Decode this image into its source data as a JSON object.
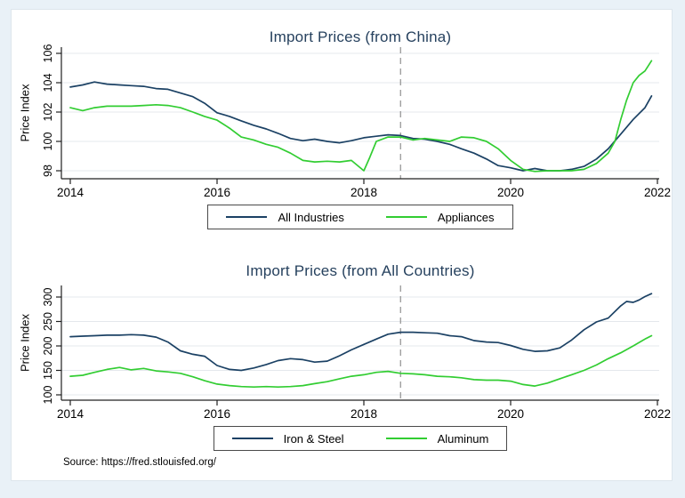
{
  "source_note": "Source: https://fred.stlouisfed.org/",
  "colors": {
    "background": "#e9f1f7",
    "panel": "#ffffff",
    "title": "#26415e",
    "gridline": "#e4e8ec",
    "axis": "#202020",
    "reference_line": "#909090",
    "navy_series": "#1b4164",
    "green_series": "#32cd32"
  },
  "chart_data": [
    {
      "type": "line",
      "title": "Import Prices (from China)",
      "ylabel": "Price Index",
      "xlabel": "",
      "ylim": [
        98,
        106
      ],
      "xlim": [
        2013.9,
        2022
      ],
      "grid": true,
      "legend_position": "bottom",
      "y_ticks": [
        98,
        100,
        102,
        104,
        106
      ],
      "x_ticks": [
        2014,
        2016,
        2018,
        2020,
        2022
      ],
      "vline_x": 2018.5,
      "series": [
        {
          "name": "All Industries",
          "color": "#1b4164",
          "points": [
            [
              2014.0,
              103.7
            ],
            [
              2014.17,
              103.85
            ],
            [
              2014.33,
              104.05
            ],
            [
              2014.5,
              103.9
            ],
            [
              2014.67,
              103.85
            ],
            [
              2014.83,
              103.8
            ],
            [
              2015.0,
              103.75
            ],
            [
              2015.17,
              103.6
            ],
            [
              2015.33,
              103.55
            ],
            [
              2015.5,
              103.3
            ],
            [
              2015.67,
              103.05
            ],
            [
              2015.83,
              102.6
            ],
            [
              2016.0,
              101.95
            ],
            [
              2016.17,
              101.7
            ],
            [
              2016.33,
              101.4
            ],
            [
              2016.5,
              101.1
            ],
            [
              2016.67,
              100.85
            ],
            [
              2016.83,
              100.55
            ],
            [
              2017.0,
              100.2
            ],
            [
              2017.17,
              100.05
            ],
            [
              2017.33,
              100.15
            ],
            [
              2017.5,
              100.0
            ],
            [
              2017.67,
              99.9
            ],
            [
              2017.83,
              100.05
            ],
            [
              2018.0,
              100.25
            ],
            [
              2018.17,
              100.35
            ],
            [
              2018.33,
              100.45
            ],
            [
              2018.5,
              100.4
            ],
            [
              2018.67,
              100.2
            ],
            [
              2018.83,
              100.15
            ],
            [
              2019.0,
              100.0
            ],
            [
              2019.17,
              99.8
            ],
            [
              2019.33,
              99.5
            ],
            [
              2019.5,
              99.2
            ],
            [
              2019.67,
              98.8
            ],
            [
              2019.83,
              98.35
            ],
            [
              2020.0,
              98.2
            ],
            [
              2020.17,
              98.0
            ],
            [
              2020.33,
              98.15
            ],
            [
              2020.5,
              98.0
            ],
            [
              2020.67,
              98.0
            ],
            [
              2020.83,
              98.1
            ],
            [
              2021.0,
              98.3
            ],
            [
              2021.17,
              98.8
            ],
            [
              2021.33,
              99.5
            ],
            [
              2021.5,
              100.5
            ],
            [
              2021.67,
              101.5
            ],
            [
              2021.83,
              102.3
            ],
            [
              2021.92,
              103.1
            ]
          ]
        },
        {
          "name": "Appliances",
          "color": "#32cd32",
          "points": [
            [
              2014.0,
              102.3
            ],
            [
              2014.17,
              102.1
            ],
            [
              2014.33,
              102.3
            ],
            [
              2014.5,
              102.4
            ],
            [
              2014.67,
              102.4
            ],
            [
              2014.83,
              102.4
            ],
            [
              2015.0,
              102.45
            ],
            [
              2015.17,
              102.5
            ],
            [
              2015.33,
              102.45
            ],
            [
              2015.5,
              102.3
            ],
            [
              2015.67,
              102.0
            ],
            [
              2015.83,
              101.7
            ],
            [
              2016.0,
              101.45
            ],
            [
              2016.17,
              100.9
            ],
            [
              2016.33,
              100.3
            ],
            [
              2016.5,
              100.1
            ],
            [
              2016.67,
              99.8
            ],
            [
              2016.83,
              99.6
            ],
            [
              2017.0,
              99.2
            ],
            [
              2017.17,
              98.7
            ],
            [
              2017.33,
              98.6
            ],
            [
              2017.5,
              98.65
            ],
            [
              2017.67,
              98.6
            ],
            [
              2017.83,
              98.7
            ],
            [
              2018.0,
              98.0
            ],
            [
              2018.08,
              98.9
            ],
            [
              2018.17,
              100.0
            ],
            [
              2018.33,
              100.3
            ],
            [
              2018.5,
              100.3
            ],
            [
              2018.67,
              100.1
            ],
            [
              2018.83,
              100.2
            ],
            [
              2019.0,
              100.1
            ],
            [
              2019.17,
              100.0
            ],
            [
              2019.33,
              100.3
            ],
            [
              2019.5,
              100.25
            ],
            [
              2019.67,
              100.0
            ],
            [
              2019.83,
              99.5
            ],
            [
              2020.0,
              98.7
            ],
            [
              2020.17,
              98.1
            ],
            [
              2020.33,
              97.95
            ],
            [
              2020.5,
              98.0
            ],
            [
              2020.67,
              98.0
            ],
            [
              2020.83,
              98.0
            ],
            [
              2021.0,
              98.1
            ],
            [
              2021.17,
              98.5
            ],
            [
              2021.33,
              99.2
            ],
            [
              2021.42,
              100.0
            ],
            [
              2021.5,
              101.5
            ],
            [
              2021.58,
              102.8
            ],
            [
              2021.67,
              104.0
            ],
            [
              2021.75,
              104.5
            ],
            [
              2021.83,
              104.8
            ],
            [
              2021.92,
              105.5
            ]
          ]
        }
      ]
    },
    {
      "type": "line",
      "title": "Import Prices (from All Countries)",
      "ylabel": "Price Index",
      "xlabel": "",
      "ylim": [
        100,
        300
      ],
      "xlim": [
        2013.9,
        2022
      ],
      "grid": true,
      "legend_position": "bottom",
      "y_ticks": [
        100,
        150,
        200,
        250,
        300
      ],
      "x_ticks": [
        2014,
        2016,
        2018,
        2020,
        2022
      ],
      "vline_x": 2018.5,
      "series": [
        {
          "name": "Iron & Steel",
          "color": "#1b4164",
          "points": [
            [
              2014.0,
              219
            ],
            [
              2014.17,
              220
            ],
            [
              2014.33,
              221
            ],
            [
              2014.5,
              222
            ],
            [
              2014.67,
              222
            ],
            [
              2014.83,
              223
            ],
            [
              2015.0,
              222
            ],
            [
              2015.17,
              218
            ],
            [
              2015.33,
              208
            ],
            [
              2015.5,
              190
            ],
            [
              2015.67,
              183
            ],
            [
              2015.83,
              179
            ],
            [
              2016.0,
              160
            ],
            [
              2016.17,
              152
            ],
            [
              2016.33,
              150
            ],
            [
              2016.5,
              155
            ],
            [
              2016.67,
              162
            ],
            [
              2016.83,
              170
            ],
            [
              2017.0,
              174
            ],
            [
              2017.17,
              172
            ],
            [
              2017.33,
              167
            ],
            [
              2017.5,
              169
            ],
            [
              2017.67,
              180
            ],
            [
              2017.83,
              192
            ],
            [
              2018.0,
              203
            ],
            [
              2018.17,
              214
            ],
            [
              2018.33,
              224
            ],
            [
              2018.5,
              228
            ],
            [
              2018.67,
              228
            ],
            [
              2018.83,
              227
            ],
            [
              2019.0,
              226
            ],
            [
              2019.17,
              221
            ],
            [
              2019.33,
              219
            ],
            [
              2019.5,
              211
            ],
            [
              2019.67,
              208
            ],
            [
              2019.83,
              207
            ],
            [
              2020.0,
              201
            ],
            [
              2020.17,
              193
            ],
            [
              2020.33,
              189
            ],
            [
              2020.5,
              190
            ],
            [
              2020.67,
              196
            ],
            [
              2020.83,
              212
            ],
            [
              2021.0,
              233
            ],
            [
              2021.17,
              249
            ],
            [
              2021.33,
              257
            ],
            [
              2021.5,
              282
            ],
            [
              2021.58,
              291
            ],
            [
              2021.67,
              289
            ],
            [
              2021.75,
              294
            ],
            [
              2021.83,
              301
            ],
            [
              2021.92,
              307
            ]
          ]
        },
        {
          "name": "Aluminum",
          "color": "#32cd32",
          "points": [
            [
              2014.0,
              138
            ],
            [
              2014.17,
              140
            ],
            [
              2014.33,
              146
            ],
            [
              2014.5,
              152
            ],
            [
              2014.67,
              156
            ],
            [
              2014.83,
              151
            ],
            [
              2015.0,
              154
            ],
            [
              2015.17,
              149
            ],
            [
              2015.33,
              147
            ],
            [
              2015.5,
              144
            ],
            [
              2015.67,
              137
            ],
            [
              2015.83,
              129
            ],
            [
              2016.0,
              122
            ],
            [
              2016.17,
              119
            ],
            [
              2016.33,
              117
            ],
            [
              2016.5,
              116
            ],
            [
              2016.67,
              117
            ],
            [
              2016.83,
              116
            ],
            [
              2017.0,
              117
            ],
            [
              2017.17,
              119
            ],
            [
              2017.33,
              123
            ],
            [
              2017.5,
              127
            ],
            [
              2017.67,
              133
            ],
            [
              2017.83,
              138
            ],
            [
              2018.0,
              141
            ],
            [
              2018.17,
              146
            ],
            [
              2018.33,
              148
            ],
            [
              2018.5,
              144
            ],
            [
              2018.67,
              143
            ],
            [
              2018.83,
              141
            ],
            [
              2019.0,
              138
            ],
            [
              2019.17,
              137
            ],
            [
              2019.33,
              135
            ],
            [
              2019.5,
              131
            ],
            [
              2019.67,
              130
            ],
            [
              2019.83,
              130
            ],
            [
              2020.0,
              128
            ],
            [
              2020.17,
              121
            ],
            [
              2020.33,
              118
            ],
            [
              2020.5,
              124
            ],
            [
              2020.67,
              133
            ],
            [
              2020.83,
              141
            ],
            [
              2021.0,
              150
            ],
            [
              2021.17,
              161
            ],
            [
              2021.33,
              174
            ],
            [
              2021.5,
              186
            ],
            [
              2021.67,
              200
            ],
            [
              2021.83,
              214
            ],
            [
              2021.92,
              221
            ]
          ]
        }
      ]
    }
  ]
}
